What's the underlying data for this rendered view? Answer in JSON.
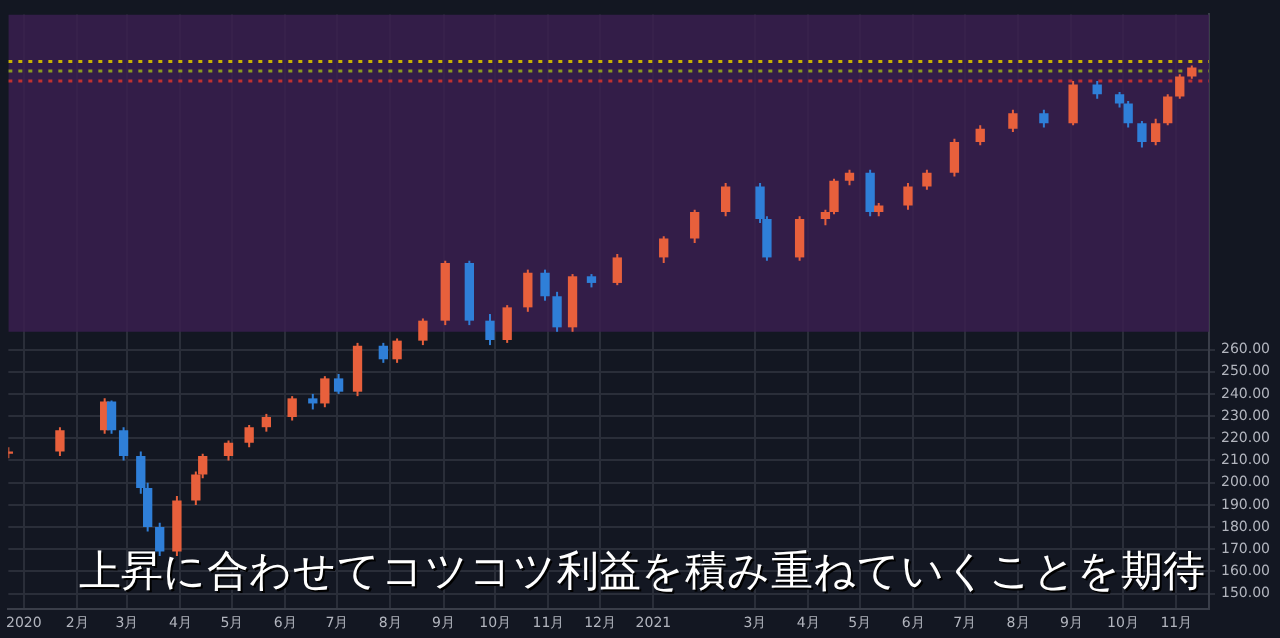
{
  "chart_data": {
    "type": "candlestick",
    "x": [
      "2019-12-23",
      "2020-01-22",
      "2020-02-17",
      "2020-02-21",
      "2020-02-28",
      "2020-03-09",
      "2020-03-13",
      "2020-03-20",
      "2020-03-30",
      "2020-04-10",
      "2020-04-14",
      "2020-04-29",
      "2020-05-11",
      "2020-05-21",
      "2020-06-05",
      "2020-06-17",
      "2020-06-24",
      "2020-07-02",
      "2020-07-13",
      "2020-07-28",
      "2020-08-05",
      "2020-08-20",
      "2020-09-02",
      "2020-09-16",
      "2020-09-28",
      "2020-10-08",
      "2020-10-20",
      "2020-10-30",
      "2020-11-06",
      "2020-11-15",
      "2020-11-26",
      "2020-12-11",
      "2021-01-07",
      "2021-01-25",
      "2021-02-12",
      "2021-03-04",
      "2021-03-08",
      "2021-03-27",
      "2021-04-11",
      "2021-04-16",
      "2021-04-25",
      "2021-05-07",
      "2021-05-12",
      "2021-05-29",
      "2021-06-09",
      "2021-06-25",
      "2021-07-10",
      "2021-07-29",
      "2021-08-16",
      "2021-09-02",
      "2021-09-16",
      "2021-09-29",
      "2021-10-04",
      "2021-10-12",
      "2021-10-20",
      "2021-10-27",
      "2021-11-03",
      "2021-11-10"
    ],
    "ohlc": [
      [
        213,
        216,
        211,
        214
      ],
      [
        214,
        225,
        212,
        223.6
      ],
      [
        223.6,
        238,
        222,
        236.6
      ],
      [
        236.6,
        237,
        222,
        223.6
      ],
      [
        223.6,
        225,
        210,
        212
      ],
      [
        212,
        214,
        195,
        197.6
      ],
      [
        197.6,
        200,
        178,
        180
      ],
      [
        180,
        182,
        167,
        169
      ],
      [
        169,
        194,
        167,
        192
      ],
      [
        192,
        205,
        190,
        203.7
      ],
      [
        203.7,
        213,
        202,
        212
      ],
      [
        212,
        219,
        210,
        218
      ],
      [
        218,
        226,
        216,
        225
      ],
      [
        225,
        231,
        223,
        229.6
      ],
      [
        229.6,
        239,
        228,
        238
      ],
      [
        238,
        240,
        233,
        235.7
      ],
      [
        235.7,
        248,
        234,
        247
      ],
      [
        247,
        249,
        240,
        241
      ],
      [
        241,
        263,
        239,
        261.7
      ],
      [
        261.7,
        263,
        254,
        255.6
      ],
      [
        255.6,
        265,
        254,
        264
      ],
      [
        264,
        274,
        262,
        273
      ],
      [
        273,
        300,
        271,
        299
      ],
      [
        299,
        300,
        271,
        273
      ],
      [
        273,
        276,
        262,
        264.3
      ],
      [
        264.3,
        280,
        263,
        279
      ],
      [
        279,
        296,
        277,
        294.6
      ],
      [
        294.6,
        296,
        282,
        284
      ],
      [
        284,
        286,
        268,
        270
      ],
      [
        270,
        294,
        268,
        293
      ],
      [
        293,
        294,
        288,
        290
      ],
      [
        290,
        303,
        289,
        301.5
      ],
      [
        301.5,
        311,
        299,
        310
      ],
      [
        310,
        323,
        308,
        322
      ],
      [
        322,
        335,
        320,
        333.5
      ],
      [
        333.5,
        335,
        317,
        318.8
      ],
      [
        318.8,
        320,
        300,
        301.5
      ],
      [
        301.5,
        320,
        300,
        318.8
      ],
      [
        318.8,
        323,
        316,
        322
      ],
      [
        322,
        337,
        321,
        336
      ],
      [
        336,
        341,
        334,
        339.6
      ],
      [
        339.6,
        341,
        320,
        322
      ],
      [
        322,
        326,
        320,
        324.9
      ],
      [
        324.9,
        335,
        323,
        333.5
      ],
      [
        333.5,
        341,
        332,
        339.6
      ],
      [
        339.6,
        355,
        338,
        353.5
      ],
      [
        353.5,
        361,
        352,
        359.5
      ],
      [
        359.5,
        368,
        358,
        366.5
      ],
      [
        366.5,
        368,
        360,
        362
      ],
      [
        362,
        381,
        361,
        379.4
      ],
      [
        379.4,
        381,
        373,
        375
      ],
      [
        375,
        376,
        369,
        370.8
      ],
      [
        370.8,
        372,
        360,
        362
      ],
      [
        362,
        363,
        351,
        353.5
      ],
      [
        353.5,
        364,
        352,
        362
      ],
      [
        362,
        375,
        361,
        374
      ],
      [
        374,
        384,
        373,
        383
      ],
      [
        383,
        388,
        382,
        387.09
      ]
    ],
    "colors": [
      "#e8603c",
      "#e8603c",
      "#e8603c",
      "#2f7fd8",
      "#2f7fd8",
      "#2f7fd8",
      "#2f7fd8",
      "#2f7fd8",
      "#e8603c",
      "#e8603c",
      "#e8603c",
      "#e8603c",
      "#e8603c",
      "#e8603c",
      "#e8603c",
      "#2f7fd8",
      "#e8603c",
      "#2f7fd8",
      "#e8603c",
      "#2f7fd8",
      "#e8603c",
      "#e8603c",
      "#e8603c",
      "#2f7fd8",
      "#2f7fd8",
      "#e8603c",
      "#e8603c",
      "#2f7fd8",
      "#2f7fd8",
      "#e8603c",
      "#2f7fd8",
      "#e8603c",
      "#e8603c",
      "#e8603c",
      "#e8603c",
      "#2f7fd8",
      "#2f7fd8",
      "#e8603c",
      "#e8603c",
      "#e8603c",
      "#e8603c",
      "#2f7fd8",
      "#e8603c",
      "#e8603c",
      "#e8603c",
      "#e8603c",
      "#e8603c",
      "#e8603c",
      "#2f7fd8",
      "#e8603c",
      "#2f7fd8",
      "#2f7fd8",
      "#2f7fd8",
      "#2f7fd8",
      "#e8603c",
      "#e8603c",
      "#e8603c",
      "#e8603c"
    ],
    "xlim": [
      "2019-12-23",
      "2021-11-20"
    ],
    "xticks": [
      {
        "value": "2020-01-01",
        "label": "2020"
      },
      {
        "value": "2020-02-01",
        "label": "2月"
      },
      {
        "value": "2020-03-01",
        "label": "3月"
      },
      {
        "value": "2020-04-01",
        "label": "4月"
      },
      {
        "value": "2020-05-01",
        "label": "5月"
      },
      {
        "value": "2020-06-01",
        "label": "6月"
      },
      {
        "value": "2020-07-01",
        "label": "7月"
      },
      {
        "value": "2020-08-01",
        "label": "8月"
      },
      {
        "value": "2020-09-01",
        "label": "9月"
      },
      {
        "value": "2020-10-01",
        "label": "10月"
      },
      {
        "value": "2020-11-01",
        "label": "11月"
      },
      {
        "value": "2020-12-01",
        "label": "12月"
      },
      {
        "value": "2021-01-01",
        "label": "2021"
      },
      {
        "value": "2021-03-01",
        "label": "3月"
      },
      {
        "value": "2021-04-01",
        "label": "4月"
      },
      {
        "value": "2021-05-01",
        "label": "5月"
      },
      {
        "value": "2021-06-01",
        "label": "6月"
      },
      {
        "value": "2021-07-01",
        "label": "7月"
      },
      {
        "value": "2021-08-01",
        "label": "8月"
      },
      {
        "value": "2021-09-01",
        "label": "9月"
      },
      {
        "value": "2021-10-01",
        "label": "10月"
      },
      {
        "value": "2021-11-01",
        "label": "11月"
      }
    ],
    "ylim": [
      143,
      411
    ],
    "yticks": [
      {
        "value": 150,
        "label": "150.00"
      },
      {
        "value": 160,
        "label": "160.00"
      },
      {
        "value": 170,
        "label": "170.00"
      },
      {
        "value": 180,
        "label": "180.00"
      },
      {
        "value": 190,
        "label": "190.00"
      },
      {
        "value": 200,
        "label": "200.00"
      },
      {
        "value": 210,
        "label": "210.00"
      },
      {
        "value": 220,
        "label": "220.00"
      },
      {
        "value": 230,
        "label": "230.00"
      },
      {
        "value": 240,
        "label": "240.00"
      },
      {
        "value": 250,
        "label": "250.00"
      },
      {
        "value": 260,
        "label": "260.00"
      }
    ],
    "bands": [
      {
        "axis": "y",
        "from": 268,
        "to": 411,
        "color": "#3a1f4f"
      }
    ],
    "ref_lines": [
      {
        "axis": "y",
        "value": 389.8,
        "color": "#c8b400",
        "line_style": "dotted"
      },
      {
        "axis": "y",
        "value": 385.5,
        "color": "#8a9a20",
        "line_style": "dotted"
      },
      {
        "axis": "y",
        "value": 381,
        "color": "#c03030",
        "line_style": "dotted"
      }
    ],
    "grid": true,
    "annotations": [
      "上昇に合わせてコツコツ利益を積み重ねていくことを期待"
    ]
  }
}
